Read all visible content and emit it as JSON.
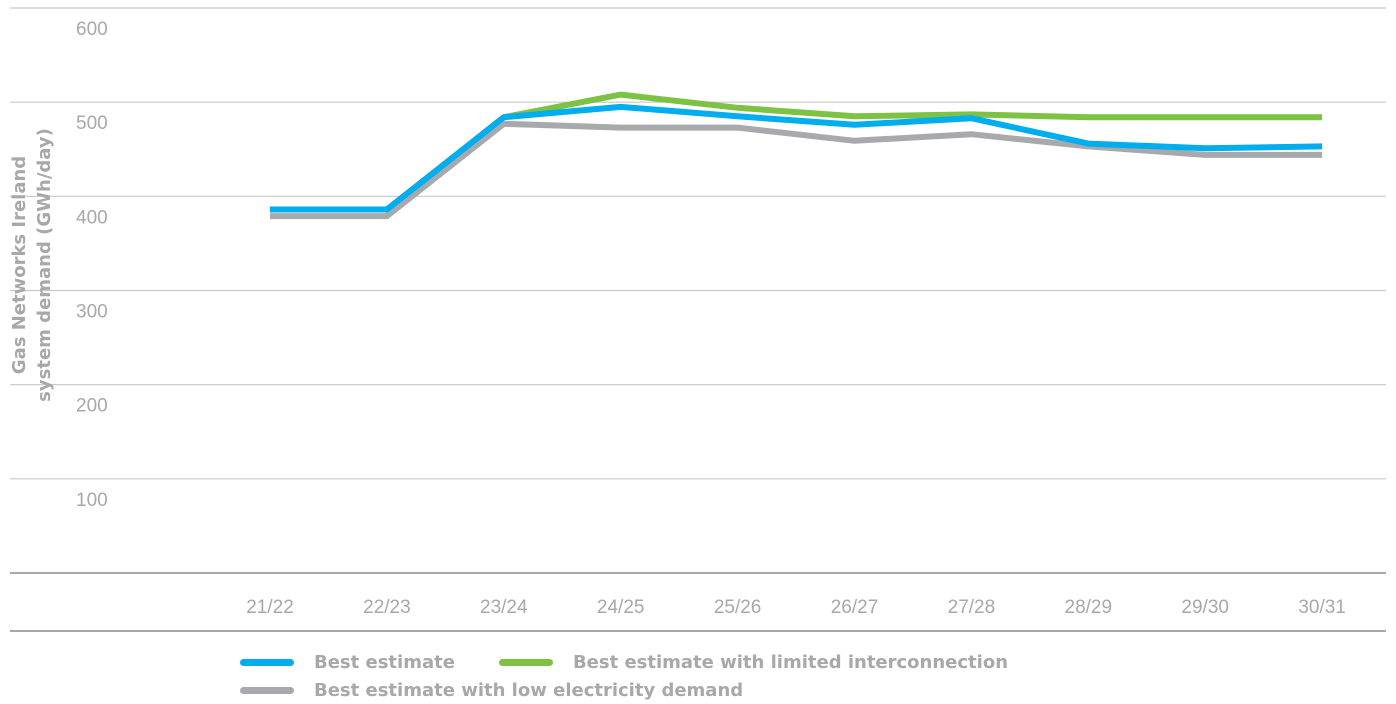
{
  "chart_data": {
    "type": "line",
    "title": "",
    "xlabel": "",
    "ylabel_lines": [
      "Gas Networks Ireland",
      "system demand (GWh/day)"
    ],
    "categories": [
      "21/22",
      "22/23",
      "23/24",
      "24/25",
      "25/26",
      "26/27",
      "27/28",
      "28/29",
      "29/30",
      "30/31"
    ],
    "y_ticks": [
      600,
      500,
      400,
      300,
      200,
      100
    ],
    "ylim": [
      0,
      600
    ],
    "grid": true,
    "legend_position": "bottom",
    "series": [
      {
        "name": "Best estimate with limited interconnection",
        "color": "#7dc242",
        "values": [
          386,
          386,
          484,
          508,
          494,
          485,
          487,
          484,
          484,
          484
        ]
      },
      {
        "name": "Best estimate with low electricity demand",
        "color": "#a7a9ac",
        "values": [
          379,
          379,
          477,
          473,
          473,
          459,
          466,
          453,
          444,
          444
        ]
      },
      {
        "name": "Best estimate",
        "color": "#00aeef",
        "values": [
          386,
          386,
          484,
          495,
          485,
          476,
          483,
          456,
          451,
          453
        ]
      }
    ]
  },
  "legend": {
    "row1": [
      {
        "label": "Best estimate",
        "color": "#00aeef"
      },
      {
        "label": "Best estimate with limited interconnection",
        "color": "#7dc242"
      }
    ],
    "row2": [
      {
        "label": "Best estimate with low electricity demand",
        "color": "#a7a9ac"
      }
    ]
  }
}
